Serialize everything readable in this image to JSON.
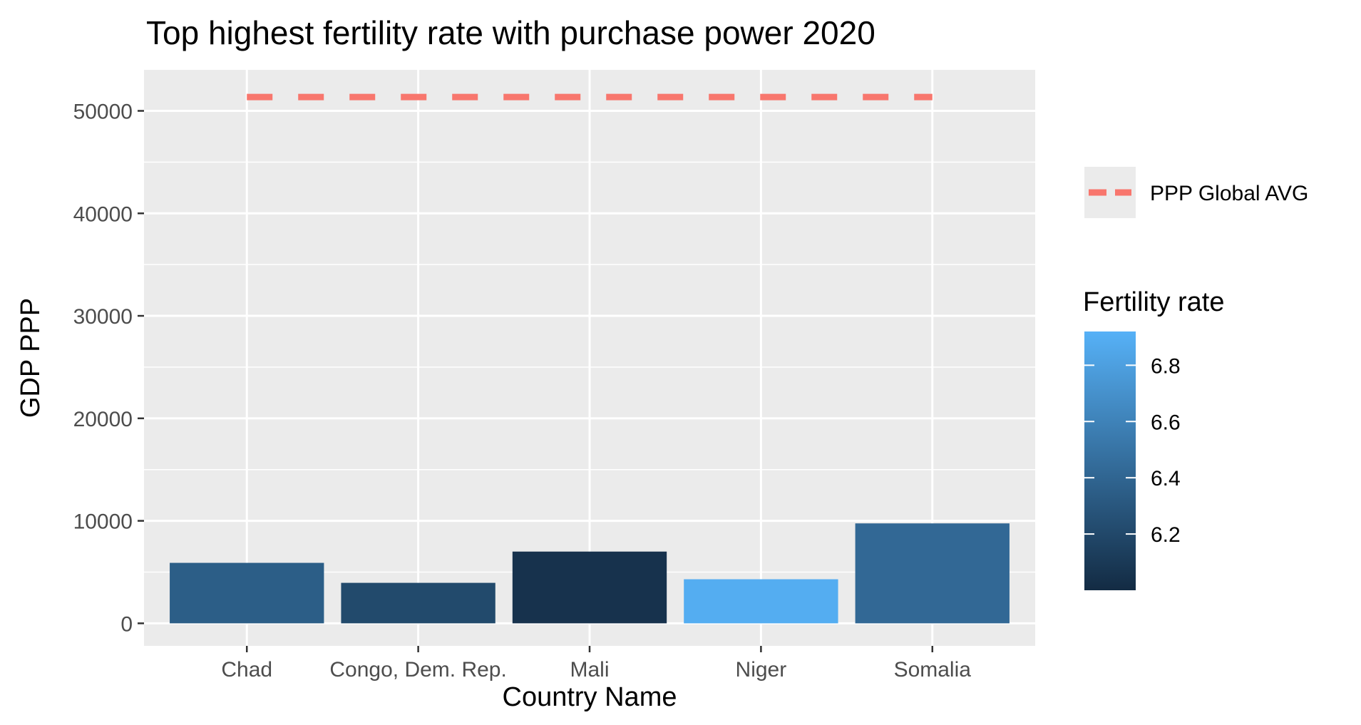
{
  "chart_data": {
    "type": "bar",
    "title": "Top highest fertility rate with purchase power 2020",
    "xlabel": "Country Name",
    "ylabel": "GDP PPP",
    "categories": [
      "Chad",
      "Congo, Dem. Rep.",
      "Mali",
      "Niger",
      "Somalia"
    ],
    "values": [
      5900,
      3950,
      7000,
      4300,
      9750
    ],
    "fertility_rate": [
      6.35,
      6.21,
      6.05,
      6.89,
      6.42
    ],
    "ylim": [
      -2200,
      54000
    ],
    "yticks": [
      0,
      10000,
      20000,
      30000,
      40000,
      50000
    ],
    "ytick_labels": [
      "0",
      "10000",
      "20000",
      "30000",
      "40000",
      "50000"
    ],
    "grid": true,
    "reference_line": {
      "label": "PPP Global AVG",
      "value": 51350,
      "color": "#F8766D",
      "style": "dashed"
    },
    "color_scale": {
      "title": "Fertility rate",
      "low_color": "#132B43",
      "high_color": "#56B1F7",
      "domain": [
        6.0,
        6.92
      ],
      "ticks": [
        6.2,
        6.4,
        6.6,
        6.8
      ],
      "tick_labels": [
        "6.2",
        "6.4",
        "6.6",
        "6.8"
      ]
    },
    "legend_position": "right"
  }
}
